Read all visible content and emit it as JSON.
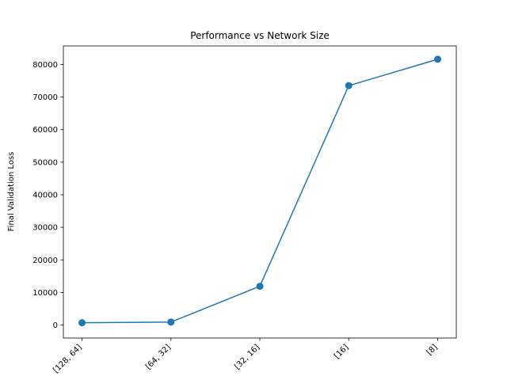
{
  "chart_data": {
    "type": "line",
    "title": "Performance vs Network Size",
    "xlabel": "",
    "ylabel": "Final Validation Loss",
    "categories": [
      "[128, 64]",
      "[64, 32]",
      "[32, 16]",
      "[16]",
      "[8]"
    ],
    "series": [
      {
        "values": [
          700,
          900,
          11900,
          73500,
          81600
        ]
      }
    ],
    "ylim": [
      -4000,
      85700
    ],
    "yticks": [
      0,
      10000,
      20000,
      30000,
      40000,
      50000,
      60000,
      70000,
      80000
    ],
    "grid": false,
    "line_color": "#1f77b4",
    "tick_label_rotation": 45
  }
}
